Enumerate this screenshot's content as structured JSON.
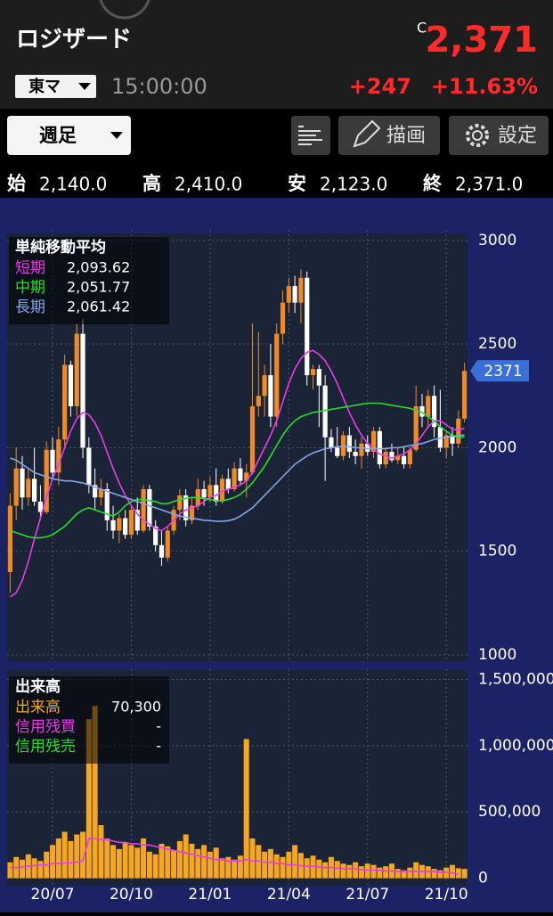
{
  "header": {
    "title": "ロジザード",
    "price_flag": "C",
    "price": "2,371",
    "market": "東マ",
    "time": "15:00:00",
    "change": "+247",
    "change_pct": "+11.63%"
  },
  "toolbar": {
    "period": "週足",
    "draw": "描画",
    "settings": "設定"
  },
  "ohlc": [
    {
      "label": "始",
      "value": "2,140.0"
    },
    {
      "label": "高",
      "value": "2,410.0"
    },
    {
      "label": "安",
      "value": "2,123.0"
    },
    {
      "label": "終",
      "value": "2,371.0"
    }
  ],
  "chart_data": [
    {
      "type": "candlestick",
      "title": "単純移動平均",
      "up_color": "#f08a24",
      "down_color": "#ffffff",
      "grid": true,
      "categories": [
        null,
        null,
        null,
        null,
        null,
        null,
        null,
        "20/07",
        null,
        null,
        null,
        null,
        null,
        null,
        null,
        null,
        null,
        null,
        null,
        null,
        "20/10",
        null,
        null,
        null,
        null,
        null,
        null,
        null,
        null,
        null,
        null,
        null,
        null,
        "21/01",
        null,
        null,
        null,
        null,
        null,
        null,
        null,
        null,
        null,
        null,
        null,
        null,
        "21/04",
        null,
        null,
        null,
        null,
        null,
        null,
        null,
        null,
        null,
        null,
        null,
        null,
        "21/07",
        null,
        null,
        null,
        null,
        null,
        null,
        null,
        null,
        null,
        null,
        null,
        null,
        "21/10",
        null,
        null,
        null
      ],
      "open": [
        1400,
        1720,
        1900,
        1760,
        1850,
        1740,
        1690,
        1990,
        1880,
        2040,
        2400,
        2200,
        2550,
        2000,
        1820,
        1760,
        1800,
        1650,
        1600,
        1660,
        1580,
        1700,
        1600,
        1800,
        1620,
        1530,
        1470,
        1600,
        1700,
        1770,
        1650,
        1720,
        1800,
        1760,
        1820,
        1740,
        1850,
        1800,
        1900,
        1840,
        1880,
        2200,
        2250,
        2350,
        2150,
        2550,
        2700,
        2780,
        2700,
        2820,
        2350,
        2380,
        2300,
        2050,
        2000,
        1960,
        2060,
        1980,
        1960,
        2020,
        1980,
        2080,
        1920,
        1980,
        1940,
        1960,
        1920,
        1990,
        2200,
        2150,
        2250,
        2100,
        2000,
        2060,
        2020,
        2140
      ],
      "high": [
        1780,
        2000,
        1960,
        1900,
        2000,
        1820,
        2030,
        2050,
        2100,
        2450,
        2420,
        2600,
        2620,
        2050,
        1900,
        1850,
        1830,
        1720,
        1680,
        1700,
        1720,
        1760,
        1820,
        1820,
        1650,
        1600,
        1620,
        1720,
        1800,
        1800,
        1760,
        1850,
        1840,
        1860,
        1900,
        1870,
        1900,
        1930,
        1950,
        1920,
        2600,
        2560,
        2400,
        2500,
        2600,
        2760,
        2820,
        2830,
        2860,
        2850,
        2400,
        2400,
        2350,
        2090,
        2100,
        2080,
        2100,
        2040,
        2050,
        2060,
        2100,
        2100,
        2000,
        2020,
        2000,
        2000,
        2000,
        2300,
        2260,
        2280,
        2300,
        2280,
        2080,
        2100,
        2180,
        2410
      ],
      "low": [
        1300,
        1650,
        1700,
        1720,
        1720,
        1650,
        1680,
        1850,
        1820,
        2000,
        2150,
        2150,
        1950,
        1780,
        1700,
        1720,
        1600,
        1560,
        1540,
        1560,
        1560,
        1580,
        1590,
        1600,
        1500,
        1430,
        1450,
        1580,
        1650,
        1620,
        1630,
        1700,
        1720,
        1740,
        1720,
        1730,
        1780,
        1790,
        1820,
        1760,
        1870,
        2150,
        2150,
        2100,
        2100,
        2500,
        2650,
        2650,
        2600,
        2300,
        2280,
        2100,
        1840,
        1980,
        1950,
        1940,
        1950,
        1920,
        1900,
        1960,
        1950,
        1900,
        1900,
        1930,
        1920,
        1900,
        1900,
        1980,
        2100,
        2100,
        2050,
        1980,
        1950,
        1960,
        2000,
        2123
      ],
      "close": [
        1720,
        1900,
        1760,
        1850,
        1740,
        1690,
        1990,
        1880,
        2040,
        2400,
        2200,
        2550,
        2000,
        1820,
        1760,
        1800,
        1650,
        1600,
        1660,
        1580,
        1700,
        1600,
        1800,
        1620,
        1530,
        1470,
        1600,
        1700,
        1770,
        1650,
        1720,
        1800,
        1760,
        1820,
        1740,
        1850,
        1800,
        1900,
        1840,
        1880,
        2200,
        2250,
        2350,
        2150,
        2550,
        2700,
        2780,
        2700,
        2820,
        2350,
        2380,
        2300,
        2050,
        2000,
        1960,
        2060,
        1980,
        1960,
        2020,
        1980,
        2080,
        1920,
        1980,
        1940,
        1960,
        1920,
        1990,
        2200,
        2150,
        2250,
        2100,
        2000,
        2060,
        2020,
        2140,
        2371
      ],
      "series": [
        {
          "name": "短期",
          "color": "#e83ce8",
          "legend_value": "2,093.62",
          "values": [
            1280,
            1300,
            1360,
            1450,
            1560,
            1660,
            1760,
            1850,
            1920,
            2000,
            2080,
            2140,
            2170,
            2160,
            2120,
            2060,
            1980,
            1900,
            1830,
            1770,
            1720,
            1680,
            1650,
            1630,
            1610,
            1600,
            1620,
            1650,
            1680,
            1700,
            1710,
            1720,
            1740,
            1760,
            1770,
            1790,
            1800,
            1810,
            1820,
            1840,
            1880,
            1940,
            2000,
            2060,
            2130,
            2220,
            2310,
            2380,
            2430,
            2460,
            2470,
            2450,
            2420,
            2370,
            2310,
            2240,
            2170,
            2110,
            2060,
            2020,
            1990,
            1970,
            1960,
            1950,
            1960,
            1970,
            1990,
            2020,
            2060,
            2100,
            2130,
            2130,
            2110,
            2090,
            2085,
            2093.62
          ]
        },
        {
          "name": "中期",
          "color": "#2bdc2b",
          "legend_value": "2,051.77",
          "values": [
            1600,
            1590,
            1580,
            1570,
            1565,
            1565,
            1570,
            1580,
            1600,
            1620,
            1650,
            1680,
            1700,
            1710,
            1700,
            1690,
            1680,
            1670,
            1690,
            1720,
            1740,
            1750,
            1750,
            1745,
            1740,
            1730,
            1730,
            1740,
            1750,
            1755,
            1760,
            1760,
            1755,
            1750,
            1745,
            1745,
            1750,
            1760,
            1775,
            1800,
            1830,
            1870,
            1910,
            1960,
            2010,
            2060,
            2100,
            2130,
            2150,
            2160,
            2170,
            2175,
            2180,
            2185,
            2190,
            2195,
            2200,
            2205,
            2210,
            2215,
            2215,
            2215,
            2210,
            2205,
            2200,
            2195,
            2190,
            2180,
            2170,
            2150,
            2130,
            2100,
            2080,
            2060,
            2050,
            2051.77
          ]
        },
        {
          "name": "長期",
          "color": "#86a6e8",
          "legend_value": "2,061.42",
          "values": [
            1950,
            1940,
            1920,
            1900,
            1880,
            1870,
            1860,
            1850,
            1845,
            1840,
            1840,
            1835,
            1830,
            1820,
            1810,
            1800,
            1790,
            1780,
            1770,
            1760,
            1750,
            1740,
            1730,
            1720,
            1710,
            1700,
            1690,
            1680,
            1670,
            1665,
            1660,
            1655,
            1650,
            1648,
            1645,
            1645,
            1648,
            1655,
            1670,
            1690,
            1710,
            1740,
            1770,
            1800,
            1830,
            1860,
            1890,
            1920,
            1940,
            1960,
            1975,
            1985,
            1995,
            2000,
            2005,
            2005,
            2005,
            2000,
            2000,
            1995,
            1995,
            1995,
            1995,
            2000,
            2000,
            2005,
            2010,
            2015,
            2020,
            2030,
            2040,
            2045,
            2050,
            2055,
            2058,
            2061.42
          ]
        }
      ],
      "ylim": [
        970,
        3034
      ],
      "yticks": [
        1000,
        1500,
        2000,
        2500,
        3000
      ]
    },
    {
      "type": "bar",
      "title": "出来高",
      "grid": true,
      "series": [
        {
          "name": "出来高",
          "type": "bar",
          "color": "#f5a623",
          "legend_value": "70,300",
          "values": [
            120000,
            160000,
            140000,
            180000,
            150000,
            130000,
            200000,
            250000,
            300000,
            350000,
            280000,
            330000,
            350000,
            1200000,
            1300000,
            400000,
            300000,
            250000,
            220000,
            270000,
            250000,
            230000,
            300000,
            200000,
            180000,
            260000,
            240000,
            210000,
            280000,
            330000,
            260000,
            220000,
            250000,
            200000,
            230000,
            150000,
            160000,
            140000,
            170000,
            1050000,
            300000,
            250000,
            200000,
            220000,
            180000,
            160000,
            200000,
            250000,
            190000,
            150000,
            170000,
            140000,
            120000,
            160000,
            130000,
            110000,
            100000,
            120000,
            90000,
            110000,
            100000,
            80000,
            90000,
            110000,
            70000,
            60000,
            80000,
            120000,
            100000,
            90000,
            70000,
            60000,
            80000,
            100000,
            75000,
            70300
          ]
        },
        {
          "name": "信用残買",
          "type": "line",
          "color": "#e83ce8",
          "legend_value": "-",
          "values": [
            80000,
            80000,
            85000,
            90000,
            95000,
            100000,
            100000,
            110000,
            110000,
            115000,
            115000,
            120000,
            130000,
            300000,
            300000,
            290000,
            290000,
            280000,
            270000,
            270000,
            260000,
            260000,
            250000,
            250000,
            240000,
            230000,
            220000,
            210000,
            200000,
            190000,
            180000,
            170000,
            160000,
            150000,
            140000,
            140000,
            130000,
            130000,
            130000,
            140000,
            130000,
            130000,
            120000,
            120000,
            110000,
            110000,
            100000,
            100000,
            95000,
            90000,
            90000,
            85000,
            80000,
            80000,
            75000,
            70000,
            70000,
            70000,
            65000,
            60000,
            60000,
            60000,
            55000,
            55000,
            50000,
            50000,
            50000,
            50000,
            50000,
            50000,
            50000,
            45000,
            45000,
            40000,
            30000,
            null
          ]
        },
        {
          "name": "信用残売",
          "type": "line",
          "color": "#2bdc2b",
          "legend_value": "-"
        }
      ],
      "ylim": [
        -50000,
        1550000
      ],
      "yticks": [
        0,
        {
          "value": 500000,
          "label": "500,000"
        },
        {
          "value": 1000000,
          "label": "1,000,000"
        },
        {
          "value": 1500000,
          "label": "1,500,000"
        }
      ]
    }
  ]
}
